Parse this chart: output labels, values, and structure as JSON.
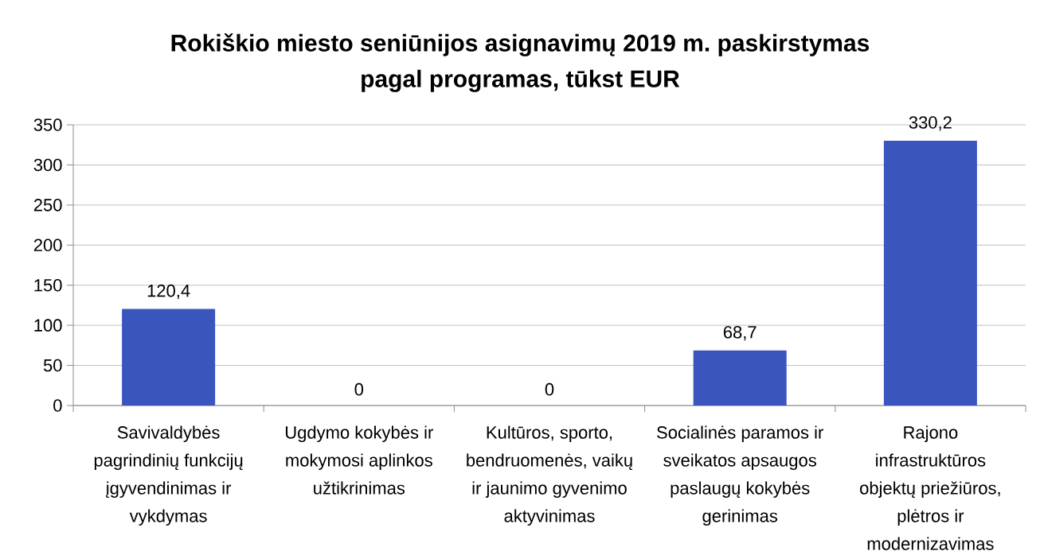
{
  "chart_data": {
    "type": "bar",
    "title": "Rokiškio miesto seniūnijos asignavimų 2019 m. paskirstymas pagal programas, tūkst EUR",
    "categories": [
      "Savivaldybės pagrindinių funkcijų įgyvendinimas ir vykdymas",
      "Ugdymo kokybės ir mokymosi aplinkos užtikrinimas",
      "Kultūros, sporto, bendruomenės, vaikų ir jaunimo gyvenimo aktyvinimas",
      "Socialinės paramos ir sveikatos apsaugos paslaugų kokybės gerinimas",
      "Rajono infrastruktūros objektų priežiūros, plėtros ir modernizavimas"
    ],
    "values": [
      120.4,
      0,
      0,
      68.7,
      330.2
    ],
    "value_labels": [
      "120,4",
      "0",
      "0",
      "68,7",
      "330,2"
    ],
    "color": "#3b55bf",
    "ylim": [
      0,
      350
    ],
    "yticks": [
      0,
      50,
      100,
      150,
      200,
      250,
      300,
      350
    ],
    "grid": "y"
  }
}
